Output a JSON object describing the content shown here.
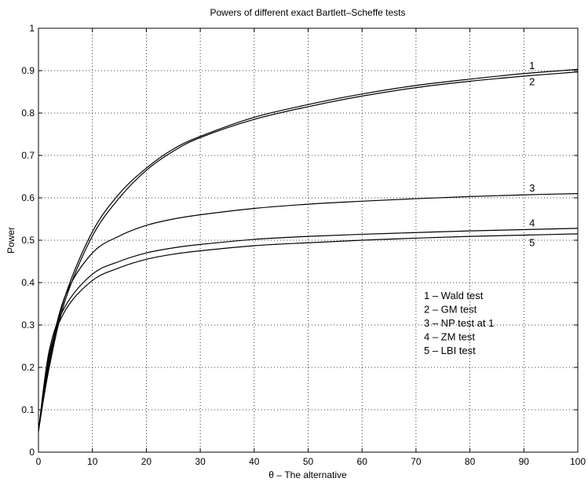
{
  "chart_data": {
    "type": "line",
    "title": "Powers of different exact Bartlett–Scheffe tests",
    "xlabel": "θ – The alternative",
    "ylabel": "Power",
    "xlim": [
      0,
      100
    ],
    "ylim": [
      0,
      1
    ],
    "xticks": [
      0,
      10,
      20,
      30,
      40,
      50,
      60,
      70,
      80,
      90,
      100
    ],
    "yticks": [
      0,
      0.1,
      0.2,
      0.3,
      0.4,
      0.5,
      0.6,
      0.7,
      0.8,
      0.9,
      1
    ],
    "ytick_labels": [
      "0",
      "0.1",
      "0.2",
      "0.3",
      "0.4",
      "0.5",
      "0.6",
      "0.7",
      "0.8",
      "0.9",
      "1"
    ],
    "grid": true,
    "legend_position": "right",
    "legend": [
      "1 – Wald test",
      "2 – GM test",
      "3 – NP test at 1",
      "4 – ZM test",
      "5 – LBI test"
    ],
    "series": [
      {
        "label": "1",
        "x": [
          0,
          2,
          5,
          10,
          15,
          20,
          25,
          30,
          40,
          50,
          60,
          70,
          80,
          90,
          100
        ],
        "y": [
          0.05,
          0.21,
          0.37,
          0.52,
          0.61,
          0.67,
          0.715,
          0.745,
          0.79,
          0.82,
          0.845,
          0.865,
          0.88,
          0.893,
          0.903
        ]
      },
      {
        "label": "2",
        "x": [
          0,
          2,
          5,
          10,
          15,
          20,
          25,
          30,
          40,
          50,
          60,
          70,
          80,
          90,
          100
        ],
        "y": [
          0.05,
          0.2,
          0.36,
          0.51,
          0.6,
          0.665,
          0.71,
          0.742,
          0.785,
          0.815,
          0.84,
          0.86,
          0.875,
          0.887,
          0.897
        ]
      },
      {
        "label": "3",
        "x": [
          0,
          2,
          5,
          10,
          15,
          20,
          25,
          30,
          40,
          50,
          60,
          70,
          80,
          90,
          100
        ],
        "y": [
          0.05,
          0.22,
          0.37,
          0.47,
          0.51,
          0.535,
          0.55,
          0.56,
          0.575,
          0.585,
          0.592,
          0.598,
          0.603,
          0.607,
          0.61
        ]
      },
      {
        "label": "4",
        "x": [
          0,
          2,
          5,
          10,
          15,
          20,
          25,
          30,
          40,
          50,
          60,
          70,
          80,
          90,
          100
        ],
        "y": [
          0.05,
          0.24,
          0.345,
          0.42,
          0.45,
          0.47,
          0.482,
          0.49,
          0.502,
          0.509,
          0.514,
          0.518,
          0.522,
          0.525,
          0.528
        ]
      },
      {
        "label": "5",
        "x": [
          0,
          2,
          5,
          10,
          15,
          20,
          25,
          30,
          40,
          50,
          60,
          70,
          80,
          90,
          100
        ],
        "y": [
          0.05,
          0.23,
          0.335,
          0.405,
          0.435,
          0.455,
          0.467,
          0.475,
          0.487,
          0.494,
          0.5,
          0.505,
          0.509,
          0.512,
          0.515
        ]
      }
    ]
  }
}
